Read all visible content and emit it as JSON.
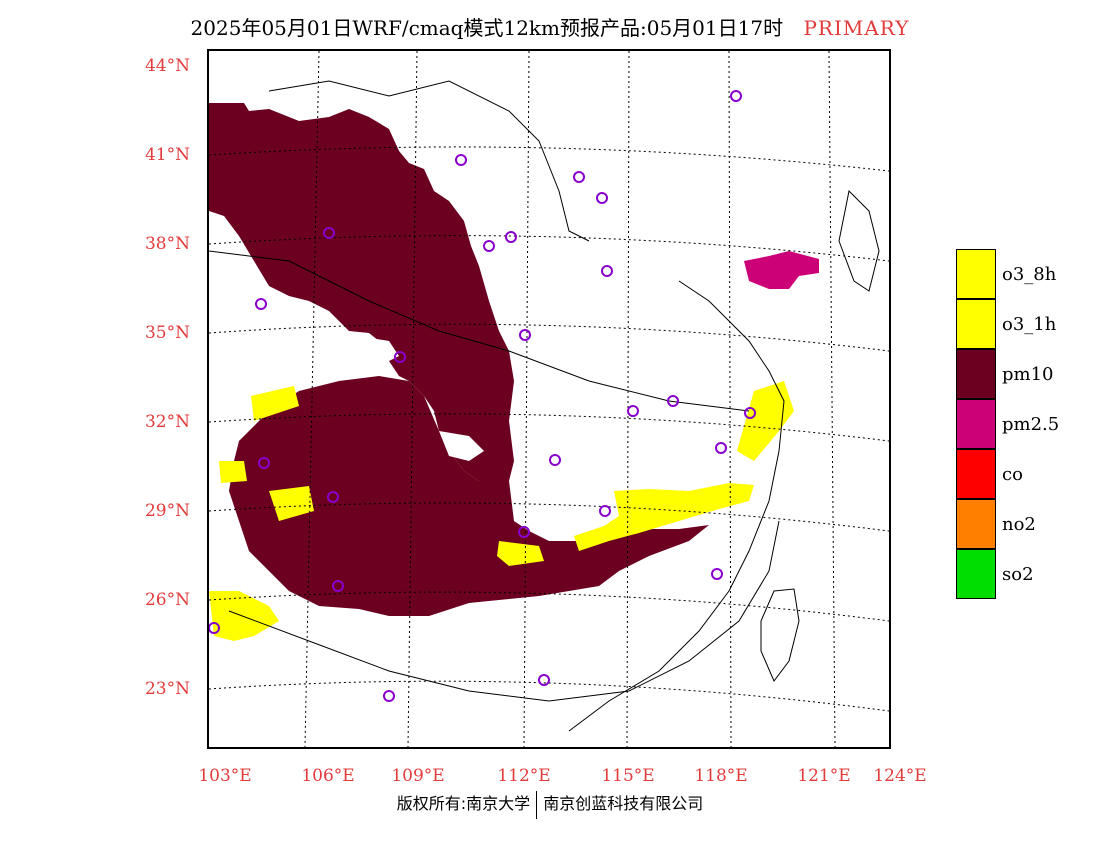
{
  "title": {
    "main": "2025年05月01日WRF/cmaq模式12km预报产品:05月01日17时",
    "tag": "PRIMARY",
    "tag_color": "#e23b3b"
  },
  "latitude_labels": [
    "44°N",
    "41°N",
    "38°N",
    "35°N",
    "32°N",
    "29°N",
    "26°N",
    "23°N"
  ],
  "longitude_labels": [
    "103°E",
    "106°E",
    "109°E",
    "112°E",
    "115°E",
    "118°E",
    "121°E",
    "124°E"
  ],
  "legend": [
    {
      "label": "o3_8h",
      "color": "#ffff00"
    },
    {
      "label": "o3_1h",
      "color": "#ffff00"
    },
    {
      "label": "pm10",
      "color": "#6b0020"
    },
    {
      "label": "pm2.5",
      "color": "#cc0077"
    },
    {
      "label": "co",
      "color": "#ff0000"
    },
    {
      "label": "no2",
      "color": "#ff8000"
    },
    {
      "label": "so2",
      "color": "#00dd00"
    }
  ],
  "copyright": {
    "left": "版权所有:南京大学",
    "right": "南京创蓝科技有限公司"
  },
  "colors": {
    "pm10": "#6b0020",
    "pm25": "#cc0077",
    "o3": "#ffff00",
    "station_marker": "#8800cc",
    "axis_label": "#e23b3b"
  }
}
